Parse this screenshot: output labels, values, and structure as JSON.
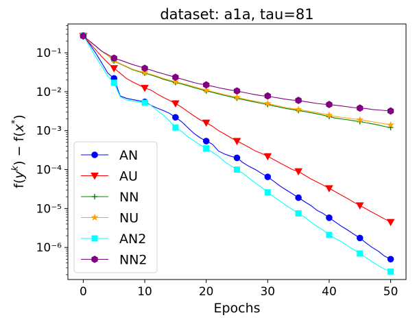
{
  "chart_data": {
    "type": "line",
    "title": "dataset: a1a, tau=81",
    "xlabel": "Epochs",
    "ylabel": "f(y^k) − f(x*)",
    "yscale": "log",
    "xlim": [
      -2.5,
      52.5
    ],
    "ylim": [
      1.5e-07,
      0.55
    ],
    "x_ticks": [
      0,
      10,
      20,
      30,
      40,
      50
    ],
    "x_tick_labels": [
      "0",
      "10",
      "20",
      "30",
      "40",
      "50"
    ],
    "y_ticks": [
      1e-06,
      1e-05,
      0.0001,
      0.001,
      0.01,
      0.1
    ],
    "y_tick_labels": [
      "10⁻⁶",
      "10⁻⁵",
      "10⁻⁴",
      "10⁻³",
      "10⁻²",
      "10⁻¹"
    ],
    "grid": false,
    "legend_position": "bottom-left",
    "x": [
      0,
      1,
      2,
      3,
      4,
      5,
      6,
      7,
      8,
      9,
      10,
      11,
      12,
      13,
      14,
      15,
      16,
      17,
      18,
      19,
      20,
      21,
      22,
      23,
      24,
      25,
      26,
      27,
      28,
      29,
      30,
      31,
      32,
      33,
      34,
      35,
      36,
      37,
      38,
      39,
      40,
      41,
      42,
      43,
      44,
      45,
      46,
      47,
      48,
      49,
      50
    ],
    "marker_every": 5,
    "series": [
      {
        "name": "AN",
        "color": "#0000ff",
        "marker": "circle",
        "values": [
          0.28,
          0.17,
          0.1,
          0.055,
          0.03,
          0.022,
          0.0078,
          0.0068,
          0.0063,
          0.0059,
          0.0055,
          0.0045,
          0.0038,
          0.0033,
          0.0028,
          0.0022,
          0.0017,
          0.0012,
          0.00085,
          0.00066,
          0.00054,
          0.00045,
          0.0003,
          0.00025,
          0.00022,
          0.0002,
          0.00015,
          0.00012,
          0.0001,
          8e-05,
          6.5e-05,
          5e-05,
          3.8e-05,
          3e-05,
          2.4e-05,
          1.9e-05,
          1.5e-05,
          1.2e-05,
          9e-06,
          7.5e-06,
          5.8e-06,
          4.5e-06,
          3.5e-06,
          2.8e-06,
          2.2e-06,
          1.75e-06,
          1.3e-06,
          1e-06,
          8e-07,
          6e-07,
          5e-07
        ]
      },
      {
        "name": "AU",
        "color": "#ff0000",
        "marker": "triangle-down",
        "values": [
          0.27,
          0.18,
          0.12,
          0.08,
          0.055,
          0.04,
          0.03,
          0.022,
          0.018,
          0.015,
          0.0125,
          0.011,
          0.0088,
          0.0072,
          0.006,
          0.005,
          0.004,
          0.0031,
          0.0024,
          0.0019,
          0.0016,
          0.0013,
          0.001,
          0.00082,
          0.00066,
          0.00054,
          0.00045,
          0.00037,
          0.0003,
          0.00026,
          0.00022,
          0.00018,
          0.000148,
          0.000122,
          0.0001,
          9e-05,
          7.2e-05,
          5.8e-05,
          4.8e-05,
          4e-05,
          3.3e-05,
          2.7e-05,
          2.2e-05,
          1.8e-05,
          1.45e-05,
          1.2e-05,
          9.8e-06,
          8e-06,
          6.6e-06,
          5.4e-06,
          4.5e-06
        ]
      },
      {
        "name": "NN",
        "color": "#008000",
        "marker": "plus",
        "values": [
          0.27,
          0.2,
          0.15,
          0.11,
          0.085,
          0.062,
          0.052,
          0.044,
          0.037,
          0.033,
          0.03,
          0.027,
          0.024,
          0.021,
          0.019,
          0.0172,
          0.0158,
          0.0143,
          0.0128,
          0.0116,
          0.0105,
          0.0096,
          0.0088,
          0.008,
          0.0074,
          0.0068,
          0.0063,
          0.0058,
          0.0054,
          0.005,
          0.0047,
          0.0043,
          0.004,
          0.0037,
          0.0035,
          0.0033,
          0.0031,
          0.0029,
          0.0027,
          0.0025,
          0.0023,
          0.0021,
          0.002,
          0.0019,
          0.0018,
          0.0017,
          0.0016,
          0.0015,
          0.0014,
          0.00128,
          0.0012
        ]
      },
      {
        "name": "NU",
        "color": "#ffa500",
        "marker": "star",
        "values": [
          0.27,
          0.2,
          0.15,
          0.11,
          0.085,
          0.063,
          0.053,
          0.045,
          0.038,
          0.034,
          0.031,
          0.028,
          0.025,
          0.022,
          0.0198,
          0.018,
          0.0165,
          0.015,
          0.0134,
          0.0122,
          0.011,
          0.0101,
          0.0092,
          0.0084,
          0.0078,
          0.0072,
          0.0066,
          0.0061,
          0.0057,
          0.0053,
          0.005,
          0.0046,
          0.0042,
          0.0039,
          0.0037,
          0.0035,
          0.0033,
          0.0031,
          0.0029,
          0.0027,
          0.0025,
          0.0023,
          0.0022,
          0.0021,
          0.002,
          0.0019,
          0.0018,
          0.0017,
          0.0016,
          0.0015,
          0.0014
        ]
      },
      {
        "name": "AN2",
        "color": "#00ffff",
        "marker": "square",
        "values": [
          0.28,
          0.15,
          0.08,
          0.045,
          0.025,
          0.017,
          0.0075,
          0.0062,
          0.0058,
          0.0055,
          0.0052,
          0.0045,
          0.0033,
          0.0025,
          0.0018,
          0.0012,
          0.00095,
          0.0007,
          0.00055,
          0.00043,
          0.00035,
          0.00028,
          0.00022,
          0.00016,
          0.000125,
          0.0001,
          8e-05,
          6e-05,
          4.5e-05,
          3.5e-05,
          2.6e-05,
          2e-05,
          1.55e-05,
          1.2e-05,
          9.5e-06,
          7.5e-06,
          6e-06,
          4.5e-06,
          3.5e-06,
          2.8e-06,
          2.1e-06,
          1.7e-06,
          1.4e-06,
          1.1e-06,
          8.8e-07,
          7e-07,
          5.5e-07,
          4.3e-07,
          3.4e-07,
          2.8e-07,
          2.4e-07
        ]
      },
      {
        "name": "NN2",
        "color": "#800080",
        "marker": "hexagon",
        "values": [
          0.27,
          0.2,
          0.15,
          0.11,
          0.09,
          0.073,
          0.065,
          0.057,
          0.05,
          0.045,
          0.04,
          0.036,
          0.032,
          0.029,
          0.026,
          0.0235,
          0.0212,
          0.0191,
          0.0172,
          0.0158,
          0.015,
          0.0138,
          0.0127,
          0.0118,
          0.011,
          0.0105,
          0.0097,
          0.009,
          0.0084,
          0.0079,
          0.0078,
          0.0072,
          0.0068,
          0.0064,
          0.0061,
          0.006,
          0.0056,
          0.0053,
          0.005,
          0.0048,
          0.0047,
          0.0045,
          0.0043,
          0.0041,
          0.0039,
          0.0038,
          0.0037,
          0.0035,
          0.0034,
          0.0033,
          0.0032
        ]
      }
    ]
  }
}
